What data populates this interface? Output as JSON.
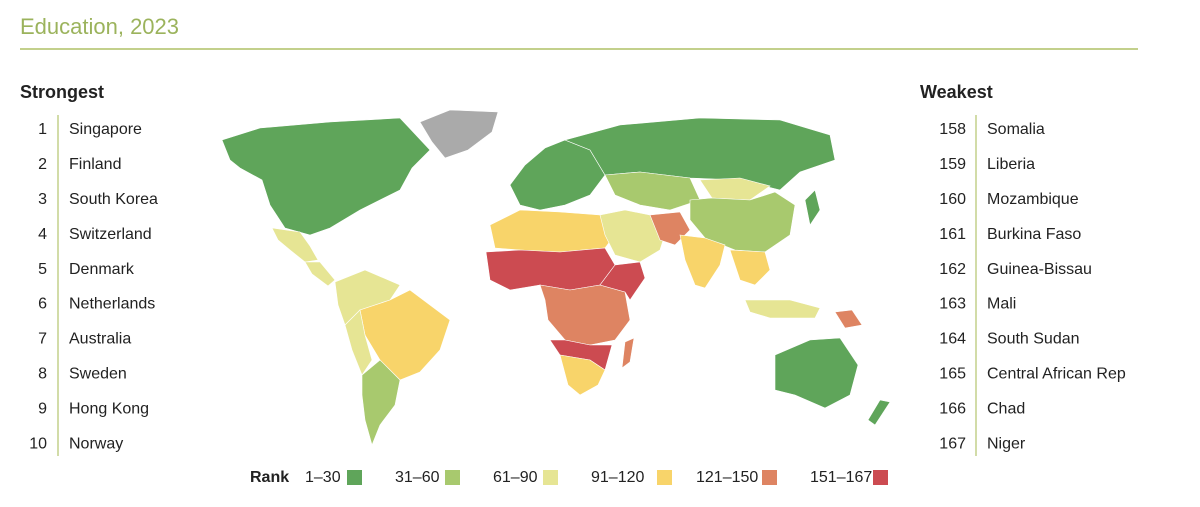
{
  "title": "Education, 2023",
  "strongest": {
    "heading": "Strongest",
    "items": [
      {
        "rank": 1,
        "name": "Singapore"
      },
      {
        "rank": 2,
        "name": "Finland"
      },
      {
        "rank": 3,
        "name": "South Korea"
      },
      {
        "rank": 4,
        "name": "Switzerland"
      },
      {
        "rank": 5,
        "name": "Denmark"
      },
      {
        "rank": 6,
        "name": "Netherlands"
      },
      {
        "rank": 7,
        "name": "Australia"
      },
      {
        "rank": 8,
        "name": "Sweden"
      },
      {
        "rank": 9,
        "name": "Hong Kong"
      },
      {
        "rank": 10,
        "name": "Norway"
      }
    ]
  },
  "weakest": {
    "heading": "Weakest",
    "items": [
      {
        "rank": 158,
        "name": "Somalia"
      },
      {
        "rank": 159,
        "name": "Liberia"
      },
      {
        "rank": 160,
        "name": "Mozambique"
      },
      {
        "rank": 161,
        "name": "Burkina Faso"
      },
      {
        "rank": 162,
        "name": "Guinea-Bissau"
      },
      {
        "rank": 163,
        "name": "Mali"
      },
      {
        "rank": 164,
        "name": "South Sudan"
      },
      {
        "rank": 165,
        "name": "Central African Rep"
      },
      {
        "rank": 166,
        "name": "Chad"
      },
      {
        "rank": 167,
        "name": "Niger"
      }
    ]
  },
  "legend": {
    "label": "Rank",
    "items": [
      {
        "label": "1–30",
        "color": "#5fa55a"
      },
      {
        "label": "31–60",
        "color": "#a8c96e"
      },
      {
        "label": "61–90",
        "color": "#e6e594"
      },
      {
        "label": "91–120",
        "color": "#f8d46a"
      },
      {
        "label": "121–150",
        "color": "#de8462"
      },
      {
        "label": "151–167",
        "color": "#cc4b51"
      }
    ]
  }
}
